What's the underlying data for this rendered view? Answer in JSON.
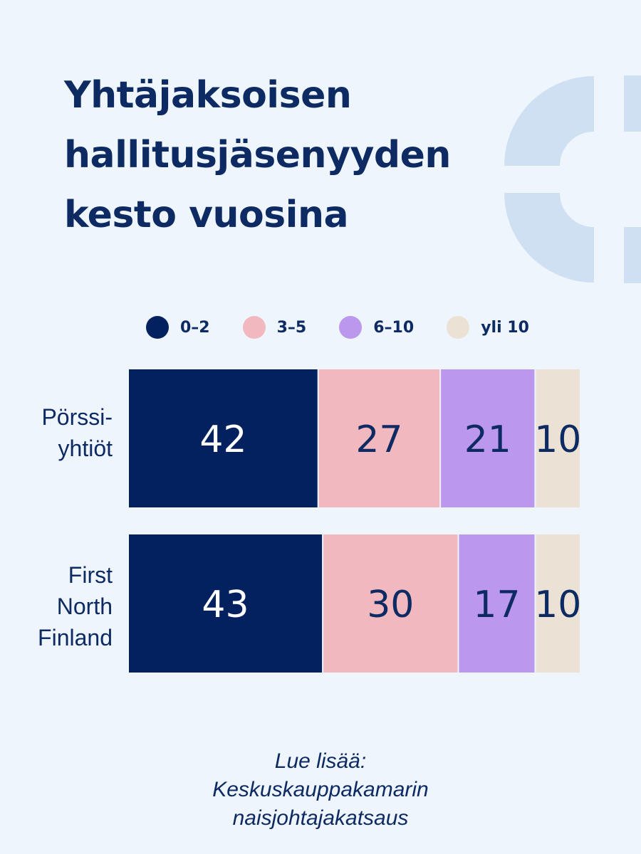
{
  "title": {
    "lines": [
      "Yhtäjaksoisen",
      "hallitusjäsenyyden",
      "kesto vuosina"
    ]
  },
  "colors": {
    "background": "#eef5fd",
    "text": "#0d2a63",
    "decoration": "#cfe0f2"
  },
  "chart_data": {
    "type": "bar",
    "orientation": "horizontal-stacked",
    "categories": [
      [
        "Pörssi-",
        "yhtiöt"
      ],
      [
        "First",
        "North",
        "Finland"
      ]
    ],
    "series": [
      {
        "name": "0–2",
        "color": "#03215f",
        "label_color": "#ffffff",
        "values": [
          42,
          43
        ]
      },
      {
        "name": "3–5",
        "color": "#f2b8c0",
        "label_color": "#0d2a63",
        "values": [
          27,
          30
        ]
      },
      {
        "name": "6–10",
        "color": "#bb97ee",
        "label_color": "#0d2a63",
        "values": [
          21,
          17
        ]
      },
      {
        "name": "yli 10",
        "color": "#ebe1d5",
        "label_color": "#0d2a63",
        "values": [
          10,
          10
        ]
      }
    ],
    "xlim": [
      0,
      100
    ],
    "legend": "top",
    "grid": false
  },
  "footer": {
    "lines": [
      "Lue lisää:",
      "Keskuskauppakamarin",
      "naisjohtajakatsaus"
    ]
  }
}
